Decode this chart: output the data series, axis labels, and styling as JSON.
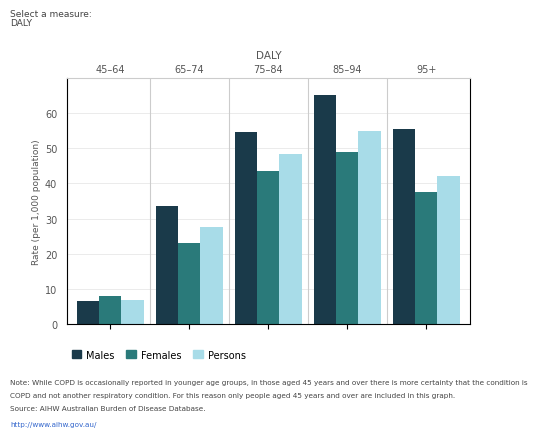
{
  "age_groups": [
    "45–64",
    "65–74",
    "75–84",
    "85–94",
    "95+"
  ],
  "males": [
    6.5,
    33.5,
    54.5,
    65.0,
    55.5
  ],
  "females": [
    8.0,
    23.0,
    43.5,
    49.0,
    37.5
  ],
  "persons": [
    7.0,
    27.5,
    48.5,
    55.0,
    42.0
  ],
  "color_males": "#1a3a4a",
  "color_females": "#2a7a7a",
  "color_persons": "#a8dce8",
  "ylabel": "Rate (per 1,000 population)",
  "chart_title": "DALY",
  "select_label": "Select a measure:",
  "select_value": "DALY",
  "ylim": [
    0,
    70
  ],
  "yticks": [
    0,
    10,
    20,
    30,
    40,
    50,
    60
  ],
  "note_line1": "Note: While COPD is occasionally reported in younger age groups, in those aged 45 years and over there is more certainty that the condition is",
  "note_line2": "COPD and not another respiratory condition. For this reason only people aged 45 years and over are included in this graph.",
  "note_line3": "Source: AIHW Australian Burden of Disease Database.",
  "link_text": "http://www.aihw.gov.au/",
  "bar_width": 0.28,
  "fig_bg": "#ffffff",
  "spine_color": "#cccccc",
  "grid_color": "#e8e8e8",
  "text_color": "#555555",
  "divider_color": "#cccccc"
}
